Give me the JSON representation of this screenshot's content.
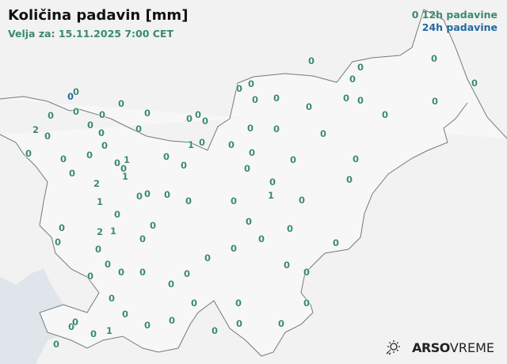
{
  "header": {
    "title": "Količina padavin [mm]",
    "valid_for": "Velja za: 15.11.2025 7:00 CET"
  },
  "legend": {
    "sample_value": "0",
    "label_12h": "12h padavine",
    "label_24h": "24h padavine"
  },
  "colors": {
    "c12h": "#3b8a6b",
    "c24h": "#1f6a9e",
    "border": "#6f7a86",
    "sea": "#dfe5ea",
    "land": "#f5f5f5"
  },
  "brand": {
    "icon": "sun-rain-icon",
    "bold": "ARSO",
    "light": "VREME"
  },
  "stations": [
    {
      "v": "0",
      "t": "12h"
    },
    {
      "v": "0",
      "t": "12h"
    },
    {
      "v": "0",
      "t": "12h"
    },
    {
      "v": "0",
      "t": "12h"
    },
    {
      "v": "0",
      "t": "12h"
    },
    {
      "v": "0",
      "t": "12h"
    },
    {
      "v": "0",
      "t": "12h"
    },
    {
      "v": "0",
      "t": "12h"
    },
    {
      "v": "0",
      "t": "24h"
    },
    {
      "v": "0",
      "t": "12h"
    },
    {
      "v": "0",
      "t": "12h"
    },
    {
      "v": "0",
      "t": "12h"
    },
    {
      "v": "0",
      "t": "12h"
    },
    {
      "v": "0",
      "t": "12h"
    },
    {
      "v": "0",
      "t": "12h"
    },
    {
      "v": "0",
      "t": "12h"
    },
    {
      "v": "0",
      "t": "12h"
    },
    {
      "v": "0",
      "t": "12h"
    },
    {
      "v": "0",
      "t": "12h"
    },
    {
      "v": "0",
      "t": "12h"
    },
    {
      "v": "0",
      "t": "12h"
    },
    {
      "v": "0",
      "t": "12h"
    },
    {
      "v": "0",
      "t": "12h"
    },
    {
      "v": "0",
      "t": "12h"
    },
    {
      "v": "0",
      "t": "12h"
    },
    {
      "v": "0",
      "t": "12h"
    },
    {
      "v": "0",
      "t": "12h"
    },
    {
      "v": "0",
      "t": "12h"
    },
    {
      "v": "0",
      "t": "12h"
    },
    {
      "v": "2",
      "t": "12h"
    },
    {
      "v": "0",
      "t": "12h"
    },
    {
      "v": "0",
      "t": "12h"
    },
    {
      "v": "0",
      "t": "12h"
    },
    {
      "v": "1",
      "t": "12h"
    },
    {
      "v": "0",
      "t": "12h"
    },
    {
      "v": "0",
      "t": "12h"
    },
    {
      "v": "0",
      "t": "12h"
    },
    {
      "v": "0",
      "t": "12h"
    },
    {
      "v": "0",
      "t": "12h"
    },
    {
      "v": "0",
      "t": "12h"
    },
    {
      "v": "0",
      "t": "12h"
    },
    {
      "v": "0",
      "t": "12h"
    },
    {
      "v": "0",
      "t": "12h"
    },
    {
      "v": "0",
      "t": "12h"
    },
    {
      "v": "1",
      "t": "12h"
    },
    {
      "v": "0",
      "t": "12h"
    },
    {
      "v": "1",
      "t": "12h"
    },
    {
      "v": "0",
      "t": "12h"
    },
    {
      "v": "0",
      "t": "12h"
    },
    {
      "v": "0",
      "t": "12h"
    },
    {
      "v": "0",
      "t": "12h"
    },
    {
      "v": "0",
      "t": "12h"
    },
    {
      "v": "2",
      "t": "12h"
    },
    {
      "v": "0",
      "t": "12h"
    },
    {
      "v": "0",
      "t": "12h"
    },
    {
      "v": "0",
      "t": "12h"
    },
    {
      "v": "0",
      "t": "12h"
    },
    {
      "v": "0",
      "t": "12h"
    },
    {
      "v": "1",
      "t": "12h"
    },
    {
      "v": "0",
      "t": "12h"
    },
    {
      "v": "1",
      "t": "12h"
    },
    {
      "v": "0",
      "t": "12h"
    },
    {
      "v": "0",
      "t": "12h"
    },
    {
      "v": "0",
      "t": "12h"
    },
    {
      "v": "0",
      "t": "12h"
    },
    {
      "v": "0",
      "t": "12h"
    },
    {
      "v": "2",
      "t": "12h"
    },
    {
      "v": "1",
      "t": "12h"
    },
    {
      "v": "0",
      "t": "12h"
    },
    {
      "v": "0",
      "t": "12h"
    },
    {
      "v": "0",
      "t": "12h"
    },
    {
      "v": "0",
      "t": "12h"
    },
    {
      "v": "0",
      "t": "12h"
    },
    {
      "v": "0",
      "t": "12h"
    },
    {
      "v": "0",
      "t": "12h"
    },
    {
      "v": "0",
      "t": "12h"
    },
    {
      "v": "0",
      "t": "12h"
    },
    {
      "v": "0",
      "t": "12h"
    },
    {
      "v": "0",
      "t": "12h"
    },
    {
      "v": "0",
      "t": "12h"
    },
    {
      "v": "0",
      "t": "12h"
    },
    {
      "v": "0",
      "t": "12h"
    },
    {
      "v": "0",
      "t": "12h"
    },
    {
      "v": "0",
      "t": "12h"
    },
    {
      "v": "0",
      "t": "12h"
    },
    {
      "v": "0",
      "t": "12h"
    },
    {
      "v": "0",
      "t": "12h"
    },
    {
      "v": "0",
      "t": "12h"
    },
    {
      "v": "0",
      "t": "12h"
    },
    {
      "v": "0",
      "t": "12h"
    },
    {
      "v": "0",
      "t": "12h"
    },
    {
      "v": "1",
      "t": "12h"
    },
    {
      "v": "0",
      "t": "12h"
    },
    {
      "v": "0",
      "t": "12h"
    },
    {
      "v": "0",
      "t": "12h"
    },
    {
      "v": "0",
      "t": "12h"
    },
    {
      "v": "0",
      "t": "12h"
    },
    {
      "v": "0",
      "t": "12h"
    }
  ]
}
